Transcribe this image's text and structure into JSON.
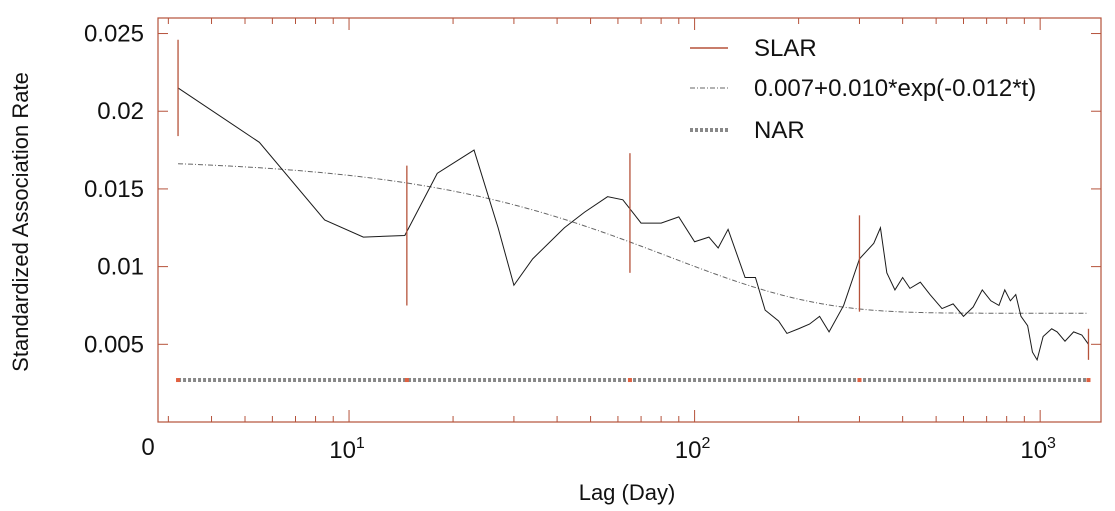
{
  "chart_data": {
    "type": "line",
    "xscale": "log",
    "xlabel": "Lag (Day)",
    "ylabel": "Standardized Association Rate",
    "xlim": [
      2.8,
      1500
    ],
    "ylim": [
      0,
      0.026
    ],
    "x_tick_labels": [
      {
        "value": 10,
        "label": "10",
        "exp": "1"
      },
      {
        "value": 100,
        "label": "10",
        "exp": "2"
      },
      {
        "value": 1000,
        "label": "10",
        "exp": "3"
      }
    ],
    "x_origin_label": "0",
    "y_ticks": [
      0.005,
      0.01,
      0.015,
      0.02,
      0.025
    ],
    "y_tick_labels": [
      "0.005",
      "0.01",
      "0.015",
      "0.02",
      "0.025"
    ],
    "legend": {
      "position": "top-right",
      "entries": [
        "SLAR",
        "0.007+0.010*exp(-0.012*t)",
        "NAR"
      ]
    },
    "colors": {
      "slar": "#1a1a1a",
      "errorbar": "#b5523a",
      "fit": "#666666",
      "nar": "#888888",
      "nar_marker": "#e06040",
      "frame": "#b5523a"
    },
    "series": [
      {
        "name": "SLAR",
        "style": "solid",
        "x": [
          3.2,
          5.5,
          8.5,
          11,
          14.5,
          18,
          23,
          27,
          30,
          34,
          42,
          48,
          56,
          62,
          70,
          80,
          90,
          100,
          110,
          117,
          125,
          140,
          150,
          160,
          175,
          185,
          200,
          215,
          230,
          245,
          270,
          300,
          330,
          345,
          360,
          380,
          400,
          420,
          450,
          480,
          520,
          560,
          600,
          640,
          680,
          720,
          760,
          790,
          820,
          850,
          880,
          920,
          950,
          980,
          1020,
          1080,
          1120,
          1180,
          1250,
          1320,
          1380
        ],
        "y": [
          0.0215,
          0.018,
          0.013,
          0.0119,
          0.012,
          0.016,
          0.0175,
          0.0125,
          0.0088,
          0.0105,
          0.0125,
          0.0135,
          0.0145,
          0.0143,
          0.0128,
          0.0128,
          0.0132,
          0.0116,
          0.0119,
          0.0112,
          0.0124,
          0.0093,
          0.0093,
          0.0072,
          0.0065,
          0.0057,
          0.006,
          0.0063,
          0.0068,
          0.0058,
          0.0075,
          0.0105,
          0.0115,
          0.0125,
          0.0096,
          0.0085,
          0.0093,
          0.0086,
          0.009,
          0.0082,
          0.0073,
          0.0076,
          0.0068,
          0.0074,
          0.0085,
          0.0078,
          0.0075,
          0.0085,
          0.0078,
          0.0082,
          0.0068,
          0.0062,
          0.0045,
          0.004,
          0.0055,
          0.006,
          0.0058,
          0.0052,
          0.0058,
          0.0056,
          0.005
        ]
      },
      {
        "name": "0.007+0.010*exp(-0.012*t)",
        "style": "dash-dot",
        "formula": {
          "a": 0.007,
          "b": 0.01,
          "k": 0.012
        }
      },
      {
        "name": "NAR",
        "style": "dotted",
        "y": 0.0027
      }
    ],
    "error_bars": [
      {
        "x": 3.2,
        "low": 0.0184,
        "high": 0.0246
      },
      {
        "x": 14.7,
        "low": 0.0075,
        "high": 0.0165
      },
      {
        "x": 65,
        "low": 0.0096,
        "high": 0.0173
      },
      {
        "x": 300,
        "low": 0.0071,
        "high": 0.0133
      },
      {
        "x": 1380,
        "low": 0.004,
        "high": 0.006
      }
    ],
    "nar_markers_x": [
      3.2,
      14.7,
      65,
      300,
      1380
    ]
  }
}
